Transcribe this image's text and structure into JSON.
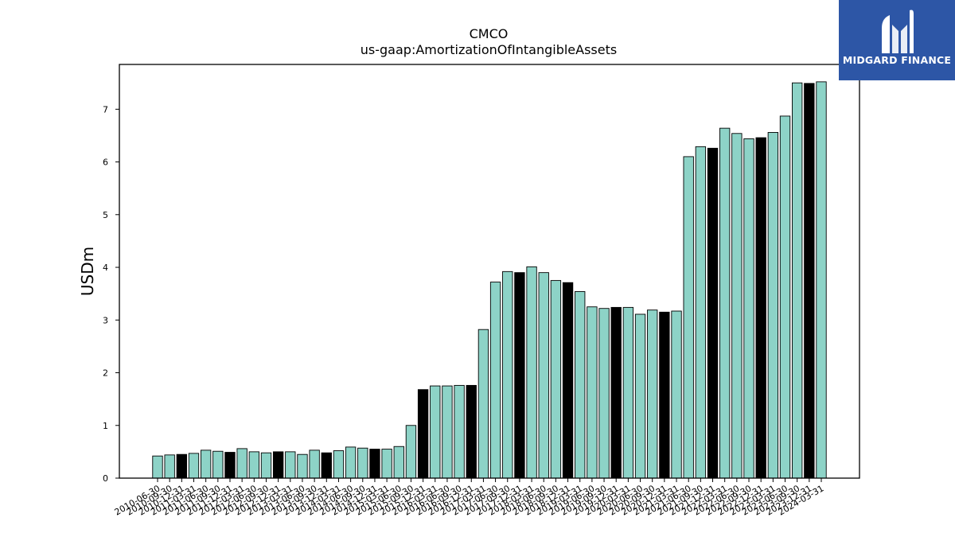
{
  "brand": {
    "name": "MIDGARD FINANCE",
    "bg_color": "#2d56a6",
    "icon": "midgard-logo-icon"
  },
  "chart_data": {
    "type": "bar",
    "title": "CMCO",
    "subtitle": "us-gaap:AmortizationOfIntangibleAssets",
    "ylabel": "USDm",
    "xlabel": "",
    "ylim": [
      0,
      7.85
    ],
    "yticks": [
      0,
      1,
      2,
      3,
      4,
      5,
      6,
      7
    ],
    "grid": false,
    "colors": {
      "normal": "#8dd3c7",
      "annual": "#000000",
      "edge": "#000000"
    },
    "categories": [
      "2010-06-30",
      "2010-09-30",
      "2010-12-31",
      "2011-03-31",
      "2011-06-30",
      "2011-09-30",
      "2011-12-31",
      "2012-03-31",
      "2012-06-30",
      "2012-09-30",
      "2012-12-31",
      "2013-03-31",
      "2013-06-30",
      "2013-09-30",
      "2013-12-31",
      "2014-03-31",
      "2014-06-30",
      "2014-09-30",
      "2014-12-31",
      "2015-03-31",
      "2015-06-30",
      "2015-09-30",
      "2015-12-31",
      "2016-03-31",
      "2016-06-30",
      "2016-09-30",
      "2016-12-31",
      "2017-03-31",
      "2017-06-30",
      "2017-09-30",
      "2017-12-31",
      "2018-03-31",
      "2018-06-30",
      "2018-09-30",
      "2018-12-31",
      "2019-03-31",
      "2019-06-30",
      "2019-09-30",
      "2019-12-31",
      "2020-03-31",
      "2020-06-30",
      "2020-09-30",
      "2020-12-31",
      "2021-03-31",
      "2021-06-30",
      "2021-09-30",
      "2021-12-31",
      "2022-03-31",
      "2022-06-30",
      "2022-09-30",
      "2022-12-31",
      "2023-03-31",
      "2023-06-30",
      "2023-09-30",
      "2023-12-31",
      "2024-03-31"
    ],
    "values": [
      0.42,
      0.44,
      0.45,
      0.47,
      0.53,
      0.51,
      0.49,
      0.56,
      0.5,
      0.48,
      0.5,
      0.5,
      0.45,
      0.53,
      0.48,
      0.52,
      0.59,
      0.57,
      0.55,
      0.55,
      0.6,
      1.0,
      1.68,
      1.75,
      1.75,
      1.76,
      1.76,
      2.82,
      3.72,
      3.92,
      3.9,
      4.01,
      3.9,
      3.75,
      3.71,
      3.54,
      3.25,
      3.22,
      3.24,
      3.24,
      3.11,
      3.19,
      3.15,
      3.17,
      6.1,
      6.29,
      6.26,
      6.64,
      6.54,
      6.44,
      6.46,
      6.56,
      6.87,
      7.5,
      7.49,
      7.52
    ],
    "annual_flags": [
      0,
      0,
      1,
      0,
      0,
      0,
      1,
      0,
      0,
      0,
      1,
      0,
      0,
      0,
      1,
      0,
      0,
      0,
      1,
      0,
      0,
      0,
      1,
      0,
      0,
      0,
      1,
      0,
      0,
      0,
      1,
      0,
      0,
      0,
      1,
      0,
      0,
      0,
      1,
      0,
      0,
      0,
      1,
      0,
      0,
      0,
      1,
      0,
      0,
      0,
      1,
      0,
      0,
      0,
      1,
      0
    ]
  }
}
